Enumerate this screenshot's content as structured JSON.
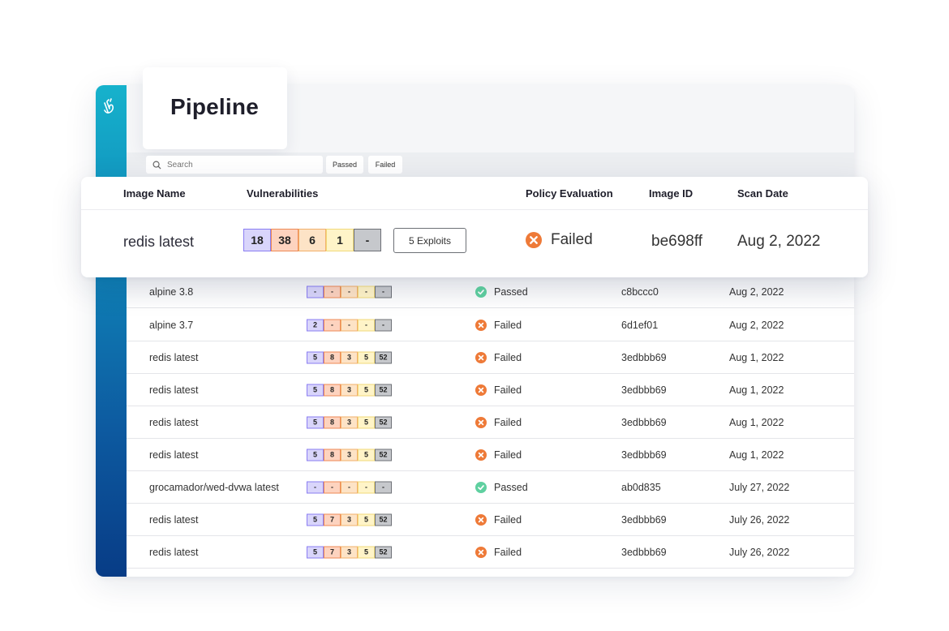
{
  "app": {
    "title": "Pipeline",
    "logo_icon": "pointer-hand-icon"
  },
  "toolbar": {
    "search_placeholder": "Search",
    "filters": [
      "Passed",
      "Failed"
    ]
  },
  "columns": {
    "image_name": "Image Name",
    "vulnerabilities": "Vulnerabilities",
    "policy_evaluation": "Policy Evaluation",
    "image_id": "Image ID",
    "scan_date": "Scan Date"
  },
  "severity_colors": {
    "critical": "#8a7df2",
    "high": "#ee8a55",
    "medium": "#f2b06a",
    "low": "#f1da7a",
    "negligible": "#6d7076"
  },
  "status_colors": {
    "failed": "#ee7a38",
    "passed": "#5fd0a0"
  },
  "highlighted_row": {
    "name": "redis latest",
    "vulns": [
      "18",
      "38",
      "6",
      "1",
      "-"
    ],
    "exploits_label": "5 Exploits",
    "status": "Failed",
    "status_icon": "failed-x-icon",
    "image_id": "be698ff",
    "scan_date": "Aug 2, 2022"
  },
  "rows": [
    {
      "name": "alpine 3.8",
      "vulns": [
        "-",
        "-",
        "-",
        "-",
        "-"
      ],
      "status": "Passed",
      "status_type": "passed",
      "image_id": "c8bccc0",
      "scan_date": "Aug 2, 2022"
    },
    {
      "name": "alpine 3.7",
      "vulns": [
        "2",
        "-",
        "-",
        "-",
        "-"
      ],
      "status": "Failed",
      "status_type": "failed",
      "image_id": "6d1ef01",
      "scan_date": "Aug 2, 2022"
    },
    {
      "name": "redis latest",
      "vulns": [
        "5",
        "8",
        "3",
        "5",
        "52"
      ],
      "status": "Failed",
      "status_type": "failed",
      "image_id": "3edbbb69",
      "scan_date": "Aug 1, 2022"
    },
    {
      "name": "redis latest",
      "vulns": [
        "5",
        "8",
        "3",
        "5",
        "52"
      ],
      "status": "Failed",
      "status_type": "failed",
      "image_id": "3edbbb69",
      "scan_date": "Aug 1, 2022"
    },
    {
      "name": "redis latest",
      "vulns": [
        "5",
        "8",
        "3",
        "5",
        "52"
      ],
      "status": "Failed",
      "status_type": "failed",
      "image_id": "3edbbb69",
      "scan_date": "Aug 1, 2022"
    },
    {
      "name": "redis latest",
      "vulns": [
        "5",
        "8",
        "3",
        "5",
        "52"
      ],
      "status": "Failed",
      "status_type": "failed",
      "image_id": "3edbbb69",
      "scan_date": "Aug 1, 2022"
    },
    {
      "name": "grocamador/wed-dvwa latest",
      "vulns": [
        "-",
        "-",
        "-",
        "-",
        "-"
      ],
      "status": "Passed",
      "status_type": "passed",
      "image_id": "ab0d835",
      "scan_date": "July 27, 2022"
    },
    {
      "name": "redis latest",
      "vulns": [
        "5",
        "7",
        "3",
        "5",
        "52"
      ],
      "status": "Failed",
      "status_type": "failed",
      "image_id": "3edbbb69",
      "scan_date": "July 26, 2022"
    },
    {
      "name": "redis latest",
      "vulns": [
        "5",
        "7",
        "3",
        "5",
        "52"
      ],
      "status": "Failed",
      "status_type": "failed",
      "image_id": "3edbbb69",
      "scan_date": "July 26, 2022"
    }
  ]
}
